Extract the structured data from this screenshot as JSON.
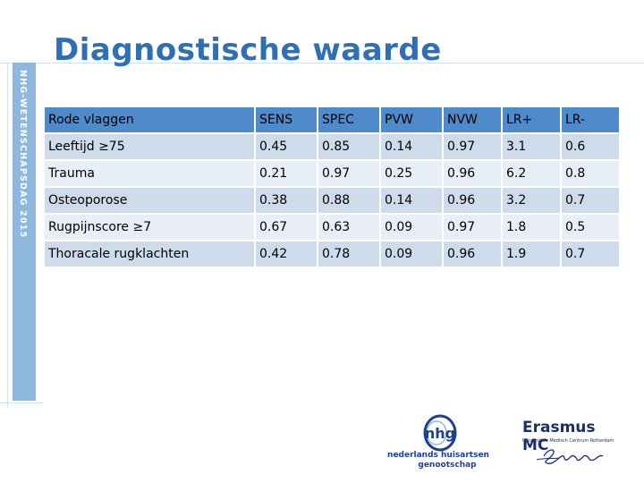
{
  "slide": {
    "title": "Diagnostische waarde",
    "side_label": "NHG-WETENSCHAPSDAG 2015"
  },
  "table": {
    "headers": [
      "Rode vlaggen",
      "SENS",
      "SPEC",
      "PVW",
      "NVW",
      "LR+",
      "LR-"
    ],
    "rows": [
      [
        "Leeftijd ≥75",
        "0.45",
        "0.85",
        "0.14",
        "0.97",
        "3.1",
        "0.6"
      ],
      [
        "Trauma",
        "0.21",
        "0.97",
        "0.25",
        "0.96",
        "6.2",
        "0.8"
      ],
      [
        "Osteoporose",
        "0.38",
        "0.88",
        "0.14",
        "0.96",
        "3.2",
        "0.7"
      ],
      [
        "Rugpijnscore ≥7",
        "0.67",
        "0.63",
        "0.09",
        "0.97",
        "1.8",
        "0.5"
      ],
      [
        "Thoracale rugklachten",
        "0.42",
        "0.78",
        "0.09",
        "0.96",
        "1.9",
        "0.7"
      ]
    ]
  },
  "logos": {
    "nhg": {
      "mark": "nhg",
      "line1": "nederlands huisartsen",
      "line2": "genootschap"
    },
    "erasmus": {
      "name": "Erasmus MC",
      "subtitle": "Universitair Medisch Centrum Rotterdam",
      "signature": "Erasmus"
    }
  },
  "colors": {
    "title": "#2f6fb3",
    "header_bg": "#4f8bcb",
    "row_odd": "#cddbeb",
    "row_even": "#e8eef6",
    "side_strip": "#8fb8dc"
  }
}
